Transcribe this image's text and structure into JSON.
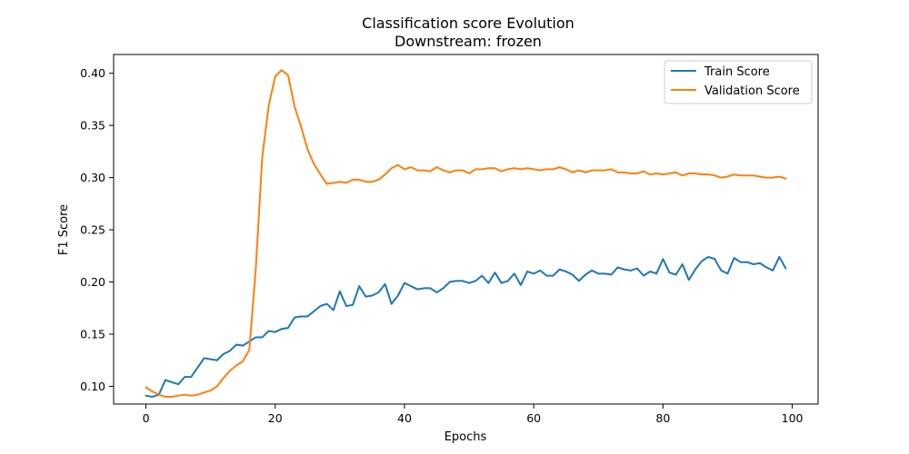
{
  "chart_data": {
    "type": "line",
    "title": "Classification score Evolution",
    "subtitle": "Downstream: frozen",
    "xlabel": "Epochs",
    "ylabel": "F1 Score",
    "xlim": [
      -5,
      104
    ],
    "ylim": [
      0.083,
      0.418
    ],
    "xticks": [
      0,
      20,
      40,
      60,
      80,
      100
    ],
    "xtick_labels": [
      "0",
      "20",
      "40",
      "60",
      "80",
      "100"
    ],
    "yticks": [
      0.1,
      0.15,
      0.2,
      0.25,
      0.3,
      0.35,
      0.4
    ],
    "ytick_labels": [
      "0.10",
      "0.15",
      "0.20",
      "0.25",
      "0.30",
      "0.35",
      "0.40"
    ],
    "grid": false,
    "legend": "top-right",
    "x": [
      0,
      1,
      2,
      3,
      4,
      5,
      6,
      7,
      8,
      9,
      10,
      11,
      12,
      13,
      14,
      15,
      16,
      17,
      18,
      19,
      20,
      21,
      22,
      23,
      24,
      25,
      26,
      27,
      28,
      29,
      30,
      31,
      32,
      33,
      34,
      35,
      36,
      37,
      38,
      39,
      40,
      41,
      42,
      43,
      44,
      45,
      46,
      47,
      48,
      49,
      50,
      51,
      52,
      53,
      54,
      55,
      56,
      57,
      58,
      59,
      60,
      61,
      62,
      63,
      64,
      65,
      66,
      67,
      68,
      69,
      70,
      71,
      72,
      73,
      74,
      75,
      76,
      77,
      78,
      79,
      80,
      81,
      82,
      83,
      84,
      85,
      86,
      87,
      88,
      89,
      90,
      91,
      92,
      93,
      94,
      95,
      96,
      97,
      98,
      99
    ],
    "series": [
      {
        "name": "Train Score",
        "color": "#1f77b4",
        "values": [
          0.091,
          0.09,
          0.092,
          0.106,
          0.104,
          0.102,
          0.109,
          0.109,
          0.118,
          0.127,
          0.126,
          0.125,
          0.131,
          0.134,
          0.14,
          0.139,
          0.143,
          0.147,
          0.147,
          0.153,
          0.152,
          0.155,
          0.156,
          0.166,
          0.167,
          0.167,
          0.172,
          0.177,
          0.179,
          0.173,
          0.191,
          0.177,
          0.178,
          0.196,
          0.186,
          0.187,
          0.19,
          0.198,
          0.179,
          0.187,
          0.199,
          0.196,
          0.193,
          0.194,
          0.194,
          0.19,
          0.194,
          0.2,
          0.201,
          0.201,
          0.199,
          0.201,
          0.206,
          0.199,
          0.209,
          0.199,
          0.201,
          0.208,
          0.197,
          0.21,
          0.208,
          0.211,
          0.206,
          0.206,
          0.212,
          0.21,
          0.207,
          0.201,
          0.207,
          0.211,
          0.208,
          0.208,
          0.207,
          0.214,
          0.212,
          0.211,
          0.213,
          0.206,
          0.21,
          0.208,
          0.222,
          0.209,
          0.207,
          0.217,
          0.202,
          0.212,
          0.22,
          0.224,
          0.222,
          0.211,
          0.208,
          0.223,
          0.219,
          0.219,
          0.217,
          0.218,
          0.214,
          0.211,
          0.224,
          0.213
        ]
      },
      {
        "name": "Validation Score",
        "color": "#ff7f0e",
        "values": [
          0.099,
          0.095,
          0.092,
          0.09,
          0.09,
          0.091,
          0.092,
          0.091,
          0.092,
          0.094,
          0.096,
          0.1,
          0.108,
          0.115,
          0.12,
          0.124,
          0.135,
          0.213,
          0.32,
          0.369,
          0.397,
          0.403,
          0.398,
          0.368,
          0.349,
          0.327,
          0.313,
          0.303,
          0.294,
          0.295,
          0.296,
          0.295,
          0.298,
          0.298,
          0.296,
          0.296,
          0.298,
          0.303,
          0.309,
          0.312,
          0.308,
          0.31,
          0.307,
          0.307,
          0.306,
          0.31,
          0.307,
          0.305,
          0.307,
          0.307,
          0.304,
          0.308,
          0.308,
          0.309,
          0.309,
          0.306,
          0.308,
          0.309,
          0.308,
          0.309,
          0.308,
          0.307,
          0.308,
          0.308,
          0.31,
          0.308,
          0.305,
          0.307,
          0.305,
          0.307,
          0.307,
          0.307,
          0.308,
          0.305,
          0.305,
          0.304,
          0.304,
          0.306,
          0.303,
          0.304,
          0.303,
          0.304,
          0.305,
          0.302,
          0.304,
          0.304,
          0.303,
          0.303,
          0.302,
          0.3,
          0.301,
          0.303,
          0.302,
          0.302,
          0.302,
          0.301,
          0.3,
          0.3,
          0.301,
          0.299
        ]
      }
    ]
  }
}
